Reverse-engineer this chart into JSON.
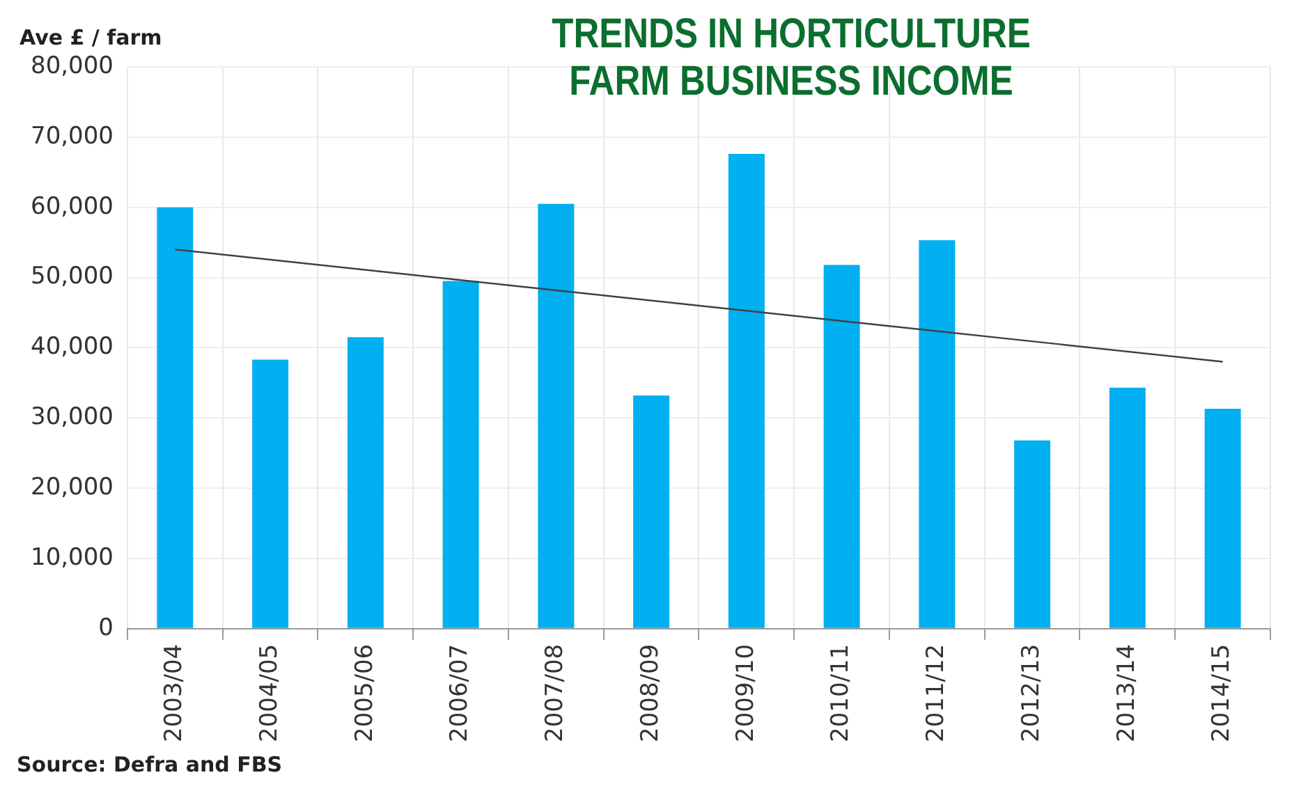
{
  "chart_data": {
    "type": "bar",
    "title": "TRENDS IN HORTICULTURE FARM BUSINESS INCOME",
    "ylabel": "Ave £ / farm",
    "categories": [
      "2003/04",
      "2004/05",
      "2005/06",
      "2006/07",
      "2007/08",
      "2008/09",
      "2009/10",
      "2010/11",
      "2011/12",
      "2012/13",
      "2013/14",
      "2014/15"
    ],
    "series": [
      {
        "color": "#00b0f0",
        "values": [
          60000,
          38300,
          41500,
          49500,
          60500,
          33200,
          67600,
          51800,
          55300,
          26800,
          34300,
          31300
        ]
      },
      {
        "type": "line",
        "color": "#404040",
        "x": [
          "2003/04",
          "2014/15"
        ],
        "values": [
          54000,
          38000
        ]
      }
    ],
    "ylim": [
      0,
      80000
    ],
    "yticks": [
      0,
      {
        "value": 10000,
        "label": "10,000"
      },
      {
        "value": 20000,
        "label": "20,000"
      },
      {
        "value": 30000,
        "label": "30,000"
      },
      {
        "value": 40000,
        "label": "40,000"
      },
      {
        "value": 50000,
        "label": "50,000"
      },
      {
        "value": 60000,
        "label": "60,000"
      },
      {
        "value": 70000,
        "label": "70,000"
      },
      {
        "value": 80000,
        "label": "80,000"
      }
    ],
    "grid": true,
    "legend": false,
    "annotations": [
      "Source: Defra and FBS"
    ]
  }
}
